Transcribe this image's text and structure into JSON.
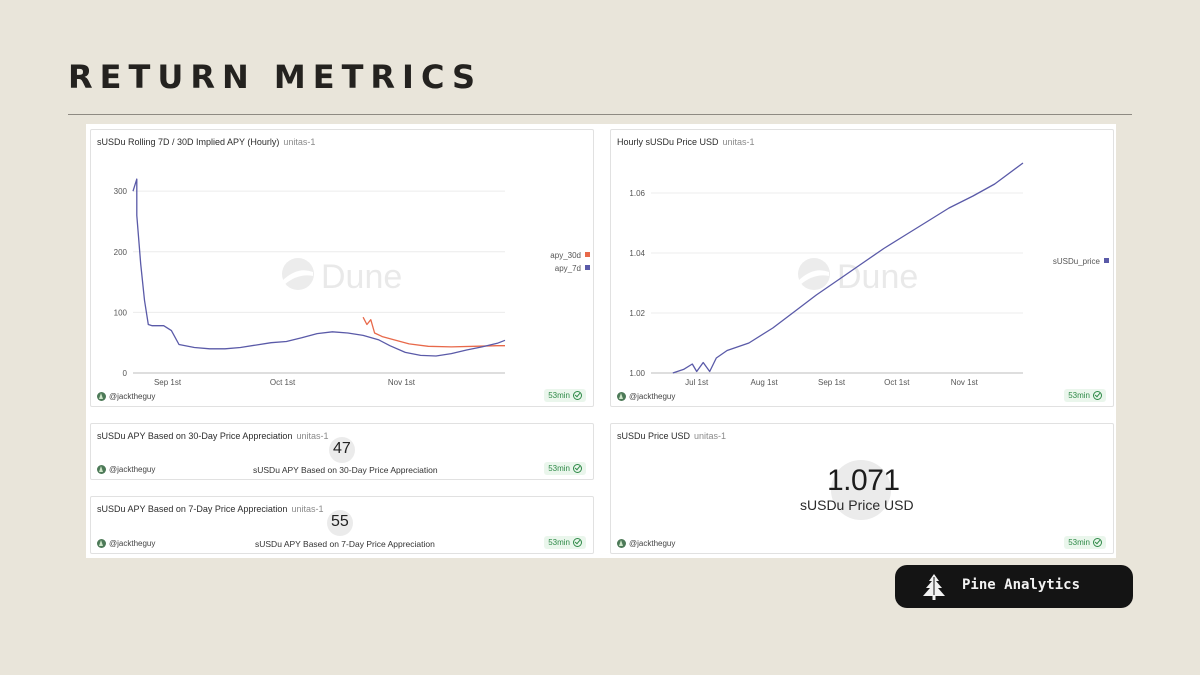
{
  "header": {
    "title": "RETURN METRICS"
  },
  "brand": {
    "label": "Pine Analytics",
    "logo_icon": "pine-tree-icon"
  },
  "charts": [
    {
      "title": "sUSDu Rolling 7D / 30D Implied APY (Hourly)",
      "subtitle": "unitas-1",
      "watermark": "Dune",
      "author": "@jacktheguy",
      "badge": "53min"
    },
    {
      "title": "Hourly sUSDu Price USD",
      "subtitle": "unitas-1",
      "watermark": "Dune",
      "author": "@jacktheguy",
      "badge": "53min"
    }
  ],
  "counters": [
    {
      "title": "sUSDu APY Based on 30-Day Price Appreciation",
      "subtitle": "unitas-1",
      "value": "47",
      "caption": "sUSDu APY Based on 30-Day Price Appreciation",
      "author": "@jacktheguy",
      "badge": "53min"
    },
    {
      "title": "sUSDu APY Based on 7-Day Price Appreciation",
      "subtitle": "unitas-1",
      "value": "55",
      "caption": "sUSDu APY Based on 7-Day Price Appreciation",
      "author": "@jacktheguy",
      "badge": "53min"
    },
    {
      "title": "sUSDu Price USD",
      "subtitle": "unitas-1",
      "value": "1.071",
      "caption": "sUSDu Price USD",
      "author": "@jacktheguy",
      "badge": "53min"
    }
  ],
  "chart_data": [
    {
      "type": "line",
      "title": "sUSDu Rolling 7D / 30D Implied APY (Hourly)",
      "x_ticks": [
        "Sep 1st",
        "Oct 1st",
        "Nov 1st"
      ],
      "xlim": [
        "2024-08-23",
        "2024-11-28"
      ],
      "ylim": [
        0,
        330
      ],
      "y_ticks": [
        0,
        100,
        200,
        300
      ],
      "grid": true,
      "legend": "right",
      "colors": {
        "apy_30d": "#e8694a",
        "apy_7d": "#5a5aa8"
      },
      "series": [
        {
          "name": "apy_30d",
          "x": [
            "2024-10-22",
            "2024-10-23",
            "2024-10-24",
            "2024-10-25",
            "2024-10-27",
            "2024-10-30",
            "2024-11-03",
            "2024-11-08",
            "2024-11-14",
            "2024-11-20",
            "2024-11-26",
            "2024-11-28"
          ],
          "values": [
            92,
            80,
            88,
            66,
            60,
            55,
            48,
            44,
            43,
            44,
            45,
            45
          ]
        },
        {
          "name": "apy_7d",
          "x": [
            "2024-08-23",
            "2024-08-24",
            "2024-08-24",
            "2024-08-25",
            "2024-08-26",
            "2024-08-27",
            "2024-08-28",
            "2024-08-31",
            "2024-09-02",
            "2024-09-04",
            "2024-09-08",
            "2024-09-12",
            "2024-09-16",
            "2024-09-20",
            "2024-09-24",
            "2024-09-28",
            "2024-10-02",
            "2024-10-06",
            "2024-10-10",
            "2024-10-14",
            "2024-10-18",
            "2024-10-22",
            "2024-10-26",
            "2024-10-29",
            "2024-11-02",
            "2024-11-06",
            "2024-11-10",
            "2024-11-14",
            "2024-11-18",
            "2024-11-22",
            "2024-11-26",
            "2024-11-28"
          ],
          "values": [
            300,
            320,
            260,
            180,
            120,
            80,
            78,
            78,
            70,
            47,
            42,
            40,
            40,
            42,
            46,
            50,
            52,
            58,
            65,
            68,
            66,
            62,
            55,
            45,
            34,
            29,
            28,
            32,
            38,
            43,
            49,
            54
          ]
        }
      ]
    },
    {
      "type": "line",
      "title": "Hourly sUSDu Price USD",
      "x_ticks": [
        "Jul 1st",
        "Aug 1st",
        "Sep 1st",
        "Oct 1st",
        "Nov 1st"
      ],
      "xlim": [
        "2024-06-10",
        "2024-11-28"
      ],
      "ylim": [
        1.0,
        1.07
      ],
      "y_ticks": [
        1.0,
        1.02,
        1.04,
        1.06
      ],
      "grid": true,
      "legend": "right",
      "colors": {
        "sUSDu_price": "#5a5aa8"
      },
      "series": [
        {
          "name": "sUSDu_price",
          "x": [
            "2024-06-20",
            "2024-06-25",
            "2024-06-29",
            "2024-07-01",
            "2024-07-04",
            "2024-07-07",
            "2024-07-10",
            "2024-07-15",
            "2024-07-25",
            "2024-08-05",
            "2024-08-15",
            "2024-08-25",
            "2024-09-05",
            "2024-09-15",
            "2024-09-25",
            "2024-10-05",
            "2024-10-15",
            "2024-10-25",
            "2024-11-05",
            "2024-11-15",
            "2024-11-28"
          ],
          "values": [
            1.0,
            1.0012,
            1.003,
            1.0005,
            1.0035,
            1.0005,
            1.005,
            1.0075,
            1.01,
            1.015,
            1.0205,
            1.026,
            1.0315,
            1.0365,
            1.0415,
            1.046,
            1.0505,
            1.055,
            1.059,
            1.063,
            1.07
          ]
        }
      ]
    }
  ]
}
